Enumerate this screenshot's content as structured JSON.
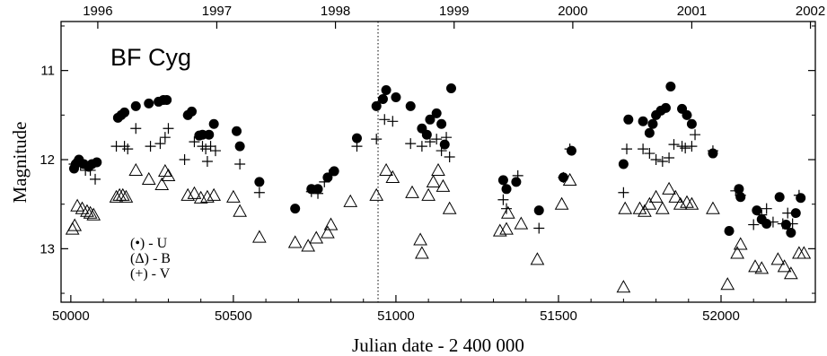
{
  "chart_data": {
    "type": "scatter",
    "title": "BF Cyg",
    "xlabel": "Julian date - 2 400 000",
    "ylabel": "Magnitude",
    "xlim": [
      49970,
      52290
    ],
    "ylim": [
      13.6,
      10.45
    ],
    "y_inverted": true,
    "x_ticks": [
      "50000",
      "50500",
      "51000",
      "51500",
      "52000"
    ],
    "y_ticks": [
      "11",
      "12",
      "13"
    ],
    "top_axis": {
      "labels": [
        "1996",
        "1997",
        "1998",
        "1999",
        "2000",
        "2001",
        "2002"
      ],
      "positions_jd": [
        50083,
        50449,
        50814,
        51179,
        51544,
        51910,
        52275
      ]
    },
    "marker_line_jd": 50945,
    "legend_position": "bottom-left",
    "series": [
      {
        "name": "U",
        "legend_label": "(•) - U",
        "marker": "filled-circle",
        "points": [
          [
            50010,
            12.1
          ],
          [
            50015,
            12.05
          ],
          [
            50025,
            12.0
          ],
          [
            50040,
            12.05
          ],
          [
            50055,
            12.08
          ],
          [
            50065,
            12.05
          ],
          [
            50080,
            12.03
          ],
          [
            50145,
            11.53
          ],
          [
            50155,
            11.5
          ],
          [
            50165,
            11.47
          ],
          [
            50200,
            11.4
          ],
          [
            50240,
            11.37
          ],
          [
            50270,
            11.35
          ],
          [
            50285,
            11.33
          ],
          [
            50295,
            11.33
          ],
          [
            50360,
            11.5
          ],
          [
            50372,
            11.46
          ],
          [
            50395,
            11.73
          ],
          [
            50405,
            11.72
          ],
          [
            50425,
            11.72
          ],
          [
            50440,
            11.6
          ],
          [
            50510,
            11.68
          ],
          [
            50520,
            11.85
          ],
          [
            50580,
            12.25
          ],
          [
            50690,
            12.55
          ],
          [
            50740,
            12.33
          ],
          [
            50760,
            12.33
          ],
          [
            50790,
            12.2
          ],
          [
            50810,
            12.13
          ],
          [
            50880,
            11.76
          ],
          [
            50940,
            11.4
          ],
          [
            50960,
            11.32
          ],
          [
            50970,
            11.22
          ],
          [
            51000,
            11.3
          ],
          [
            51045,
            11.4
          ],
          [
            51080,
            11.65
          ],
          [
            51095,
            11.72
          ],
          [
            51105,
            11.55
          ],
          [
            51125,
            11.48
          ],
          [
            51140,
            11.6
          ],
          [
            51150,
            11.83
          ],
          [
            51170,
            11.2
          ],
          [
            51330,
            12.23
          ],
          [
            51340,
            12.33
          ],
          [
            51370,
            12.25
          ],
          [
            51440,
            12.57
          ],
          [
            51515,
            12.2
          ],
          [
            51540,
            11.9
          ],
          [
            51700,
            12.05
          ],
          [
            51715,
            11.55
          ],
          [
            51760,
            11.57
          ],
          [
            51780,
            11.7
          ],
          [
            51790,
            11.6
          ],
          [
            51800,
            11.5
          ],
          [
            51815,
            11.45
          ],
          [
            51830,
            11.42
          ],
          [
            51845,
            11.18
          ],
          [
            51880,
            11.43
          ],
          [
            51895,
            11.5
          ],
          [
            51910,
            11.6
          ],
          [
            51975,
            11.93
          ],
          [
            52025,
            12.8
          ],
          [
            52055,
            12.33
          ],
          [
            52060,
            12.42
          ],
          [
            52110,
            12.57
          ],
          [
            52125,
            12.67
          ],
          [
            52140,
            12.72
          ],
          [
            52180,
            12.42
          ],
          [
            52200,
            12.73
          ],
          [
            52215,
            12.82
          ],
          [
            52230,
            12.6
          ],
          [
            52245,
            12.43
          ]
        ]
      },
      {
        "name": "B",
        "legend_label": "(Δ) - B",
        "marker": "open-triangle",
        "points": [
          [
            50005,
            12.78
          ],
          [
            50012,
            12.74
          ],
          [
            50020,
            12.52
          ],
          [
            50035,
            12.55
          ],
          [
            50050,
            12.58
          ],
          [
            50060,
            12.6
          ],
          [
            50070,
            12.62
          ],
          [
            50140,
            12.42
          ],
          [
            50150,
            12.4
          ],
          [
            50160,
            12.4
          ],
          [
            50170,
            12.42
          ],
          [
            50200,
            12.12
          ],
          [
            50240,
            12.22
          ],
          [
            50280,
            12.28
          ],
          [
            50290,
            12.13
          ],
          [
            50300,
            12.18
          ],
          [
            50360,
            12.4
          ],
          [
            50380,
            12.38
          ],
          [
            50400,
            12.43
          ],
          [
            50420,
            12.42
          ],
          [
            50440,
            12.4
          ],
          [
            50500,
            12.42
          ],
          [
            50520,
            12.58
          ],
          [
            50580,
            12.87
          ],
          [
            50690,
            12.93
          ],
          [
            50730,
            12.97
          ],
          [
            50755,
            12.88
          ],
          [
            50790,
            12.82
          ],
          [
            50800,
            12.73
          ],
          [
            50860,
            12.47
          ],
          [
            50940,
            12.4
          ],
          [
            50970,
            12.12
          ],
          [
            50990,
            12.2
          ],
          [
            51050,
            12.37
          ],
          [
            51075,
            12.9
          ],
          [
            51080,
            13.05
          ],
          [
            51100,
            12.4
          ],
          [
            51115,
            12.25
          ],
          [
            51130,
            12.12
          ],
          [
            51145,
            12.3
          ],
          [
            51165,
            12.55
          ],
          [
            51320,
            12.8
          ],
          [
            51340,
            12.78
          ],
          [
            51345,
            12.6
          ],
          [
            51385,
            12.72
          ],
          [
            51435,
            13.12
          ],
          [
            51510,
            12.5
          ],
          [
            51535,
            12.23
          ],
          [
            51700,
            13.43
          ],
          [
            51705,
            12.55
          ],
          [
            51750,
            12.55
          ],
          [
            51765,
            12.58
          ],
          [
            51780,
            12.5
          ],
          [
            51800,
            12.42
          ],
          [
            51820,
            12.55
          ],
          [
            51840,
            12.33
          ],
          [
            51860,
            12.42
          ],
          [
            51875,
            12.5
          ],
          [
            51895,
            12.48
          ],
          [
            51910,
            12.5
          ],
          [
            51975,
            12.55
          ],
          [
            52020,
            13.4
          ],
          [
            52050,
            13.05
          ],
          [
            52060,
            12.95
          ],
          [
            52105,
            13.2
          ],
          [
            52125,
            13.22
          ],
          [
            52175,
            13.12
          ],
          [
            52195,
            13.2
          ],
          [
            52215,
            13.28
          ],
          [
            52240,
            13.05
          ],
          [
            52255,
            13.05
          ]
        ]
      },
      {
        "name": "V",
        "legend_label": "(+) - V",
        "marker": "plus",
        "points": [
          [
            50010,
            12.05
          ],
          [
            50020,
            12.02
          ],
          [
            50030,
            12.06
          ],
          [
            50045,
            12.12
          ],
          [
            50060,
            12.12
          ],
          [
            50075,
            12.22
          ],
          [
            50140,
            11.85
          ],
          [
            50165,
            11.85
          ],
          [
            50175,
            11.88
          ],
          [
            50200,
            11.65
          ],
          [
            50245,
            11.85
          ],
          [
            50275,
            11.82
          ],
          [
            50290,
            11.75
          ],
          [
            50300,
            11.65
          ],
          [
            50350,
            12.0
          ],
          [
            50380,
            11.8
          ],
          [
            50405,
            11.85
          ],
          [
            50415,
            11.88
          ],
          [
            50420,
            12.02
          ],
          [
            50430,
            11.85
          ],
          [
            50445,
            11.9
          ],
          [
            50520,
            12.05
          ],
          [
            50580,
            12.37
          ],
          [
            50740,
            12.36
          ],
          [
            50760,
            12.38
          ],
          [
            50780,
            12.25
          ],
          [
            50795,
            12.17
          ],
          [
            50880,
            11.85
          ],
          [
            50940,
            11.77
          ],
          [
            50965,
            11.55
          ],
          [
            50990,
            11.57
          ],
          [
            51045,
            11.82
          ],
          [
            51080,
            11.85
          ],
          [
            51105,
            11.8
          ],
          [
            51125,
            11.77
          ],
          [
            51140,
            11.9
          ],
          [
            51155,
            11.75
          ],
          [
            51165,
            11.97
          ],
          [
            51330,
            12.45
          ],
          [
            51340,
            12.55
          ],
          [
            51375,
            12.18
          ],
          [
            51440,
            12.77
          ],
          [
            51515,
            12.2
          ],
          [
            51535,
            11.88
          ],
          [
            51700,
            12.37
          ],
          [
            51710,
            11.88
          ],
          [
            51760,
            11.88
          ],
          [
            51780,
            11.93
          ],
          [
            51800,
            12.0
          ],
          [
            51820,
            12.02
          ],
          [
            51840,
            11.98
          ],
          [
            51855,
            11.83
          ],
          [
            51880,
            11.85
          ],
          [
            51890,
            11.87
          ],
          [
            51910,
            11.85
          ],
          [
            51920,
            11.72
          ],
          [
            51975,
            11.9
          ],
          [
            52045,
            12.35
          ],
          [
            52060,
            12.4
          ],
          [
            52100,
            12.73
          ],
          [
            52125,
            12.62
          ],
          [
            52140,
            12.55
          ],
          [
            52160,
            12.7
          ],
          [
            52190,
            12.72
          ],
          [
            52205,
            12.6
          ],
          [
            52220,
            12.72
          ],
          [
            52240,
            12.4
          ]
        ]
      }
    ]
  }
}
